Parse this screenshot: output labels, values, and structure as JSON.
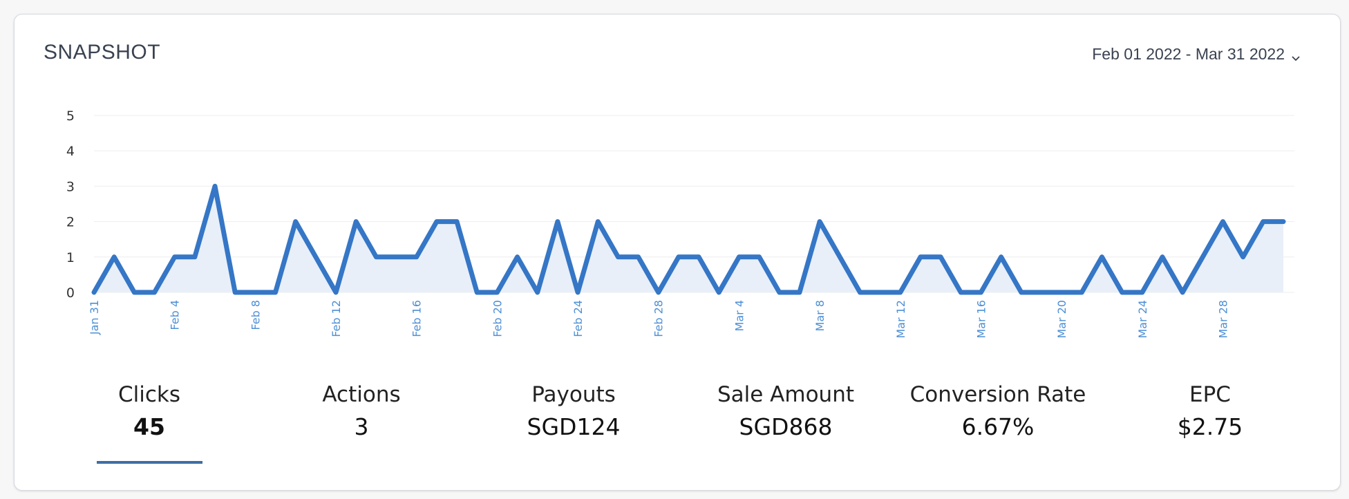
{
  "card": {
    "title": "SNAPSHOT",
    "date_range": "Feb 01 2022 - Mar 31 2022",
    "date_range_icon": "chevron-down-icon"
  },
  "colors": {
    "line": "#3576c6",
    "area": "#e8eff8",
    "x_tick": "#4d8fd6",
    "y_tick": "#333333",
    "grid": "#eeeeee",
    "active_underline": "#3e6ea6"
  },
  "chart_data": {
    "type": "area",
    "title": "",
    "xlabel": "",
    "ylabel": "",
    "ylim": [
      0,
      5
    ],
    "yticks": [
      0,
      1,
      2,
      3,
      4,
      5
    ],
    "grid": true,
    "x": [
      "Jan 31",
      "Feb 1",
      "Feb 2",
      "Feb 3",
      "Feb 4",
      "Feb 5",
      "Feb 6",
      "Feb 7",
      "Feb 8",
      "Feb 9",
      "Feb 10",
      "Feb 11",
      "Feb 12",
      "Feb 13",
      "Feb 14",
      "Feb 15",
      "Feb 16",
      "Feb 17",
      "Feb 18",
      "Feb 19",
      "Feb 20",
      "Feb 21",
      "Feb 22",
      "Feb 23",
      "Feb 24",
      "Feb 25",
      "Feb 26",
      "Feb 27",
      "Feb 28",
      "Mar 1",
      "Mar 2",
      "Mar 3",
      "Mar 4",
      "Mar 5",
      "Mar 6",
      "Mar 7",
      "Mar 8",
      "Mar 9",
      "Mar 10",
      "Mar 11",
      "Mar 12",
      "Mar 13",
      "Mar 14",
      "Mar 15",
      "Mar 16",
      "Mar 17",
      "Mar 18",
      "Mar 19",
      "Mar 20",
      "Mar 21",
      "Mar 22",
      "Mar 23",
      "Mar 24",
      "Mar 25",
      "Mar 26",
      "Mar 27",
      "Mar 28",
      "Mar 29",
      "Mar 30",
      "Mar 31"
    ],
    "xtick_labels": [
      "Jan 31",
      "Feb 4",
      "Feb 8",
      "Feb 12",
      "Feb 16",
      "Feb 20",
      "Feb 24",
      "Feb 28",
      "Mar 4",
      "Mar 8",
      "Mar 12",
      "Mar 16",
      "Mar 20",
      "Mar 24",
      "Mar 28"
    ],
    "values": [
      0,
      1,
      0,
      0,
      1,
      1,
      3,
      0,
      0,
      0,
      2,
      1,
      0,
      2,
      1,
      1,
      1,
      2,
      2,
      0,
      0,
      1,
      0,
      2,
      0,
      2,
      1,
      1,
      0,
      1,
      1,
      0,
      1,
      1,
      0,
      0,
      2,
      1,
      0,
      0,
      0,
      1,
      1,
      0,
      0,
      1,
      0,
      0,
      0,
      0,
      1,
      0,
      0,
      1,
      0,
      1,
      2,
      1,
      2,
      2
    ]
  },
  "metrics": [
    {
      "label": "Clicks",
      "value": "45",
      "active": true
    },
    {
      "label": "Actions",
      "value": "3",
      "active": false
    },
    {
      "label": "Payouts",
      "value": "SGD124",
      "active": false
    },
    {
      "label": "Sale Amount",
      "value": "SGD868",
      "active": false
    },
    {
      "label": "Conversion Rate",
      "value": "6.67%",
      "active": false
    },
    {
      "label": "EPC",
      "value": "$2.75",
      "active": false
    }
  ]
}
